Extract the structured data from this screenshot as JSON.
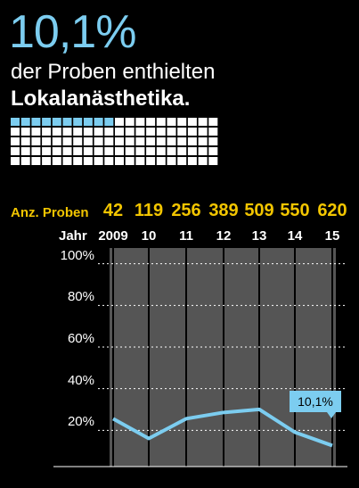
{
  "header": {
    "big_value": "10,1%",
    "line1": "der Proben enthielten",
    "line2": "Lokalanästhetika."
  },
  "dot_grid": {
    "total": 100,
    "highlighted": 10,
    "highlight_color": "#7ccdf0",
    "base_color": "#ffffff"
  },
  "table": {
    "proben_label": "Anz. Proben",
    "jahr_label": "Jahr",
    "counts": [
      "42",
      "119",
      "256",
      "389",
      "509",
      "550",
      "620"
    ],
    "years": [
      "2009",
      "10",
      "11",
      "12",
      "13",
      "14",
      "15"
    ]
  },
  "chart_data": {
    "type": "line",
    "x": [
      "2009",
      "10",
      "11",
      "12",
      "13",
      "14",
      "15"
    ],
    "series": [
      {
        "values": [
          23,
          13.5,
          23,
          26,
          27.5,
          16.5,
          10.1
        ],
        "color": "#7ccdf0"
      }
    ],
    "ytick_labels": [
      "100%",
      "80%",
      "60%",
      "40%",
      "20%"
    ],
    "yticks": [
      100,
      80,
      60,
      40,
      20
    ],
    "ylim": [
      0,
      105
    ],
    "annotation": "10,1%",
    "grid": true,
    "plot_background": "#555555"
  }
}
